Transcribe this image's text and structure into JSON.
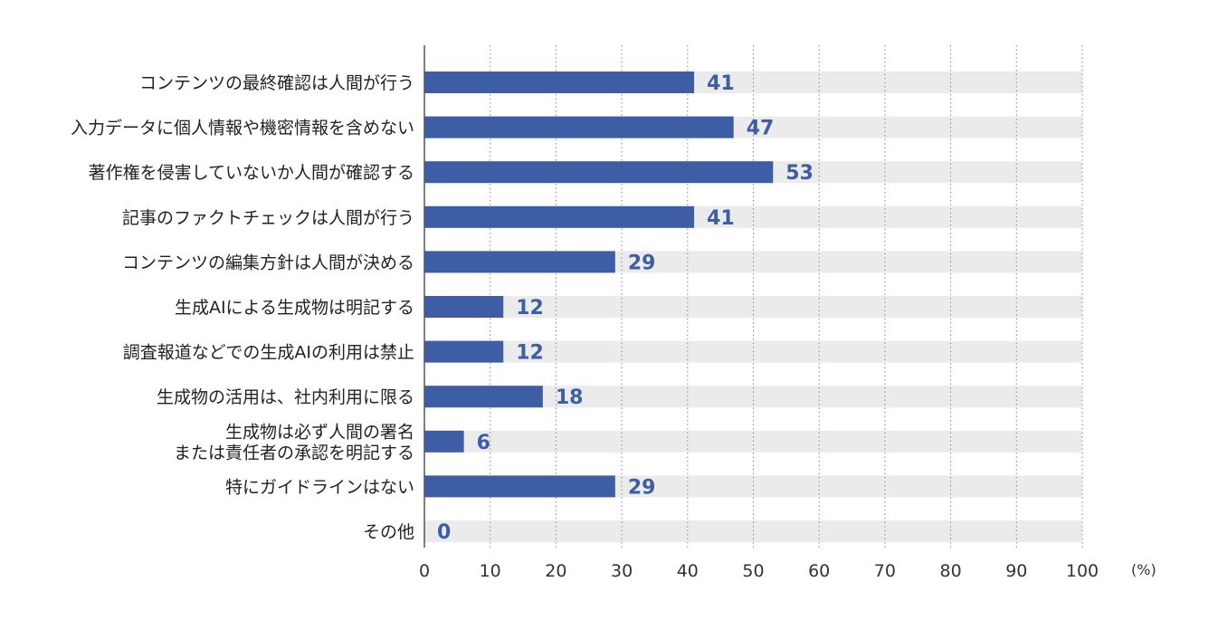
{
  "chart_data": {
    "type": "bar",
    "orientation": "horizontal",
    "categories": [
      [
        "コンテンツの最終確認は人間が行う"
      ],
      [
        "入力データに個人情報や機密情報を含めない"
      ],
      [
        "著作権を侵害していないか人間が確認する"
      ],
      [
        "記事のファクトチェックは人間が行う"
      ],
      [
        "コンテンツの編集方針は人間が決める"
      ],
      [
        "生成AIによる生成物は明記する"
      ],
      [
        "調査報道などでの生成AIの利用は禁止"
      ],
      [
        "生成物の活用は、社内利用に限る"
      ],
      [
        "生成物は必ず人間の署名",
        "または責任者の承認を明記する"
      ],
      [
        "特にガイドラインはない"
      ],
      [
        "その他"
      ]
    ],
    "values": [
      41,
      47,
      53,
      41,
      29,
      12,
      12,
      18,
      6,
      29,
      0
    ],
    "xlim": [
      0,
      100
    ],
    "x_ticks": [
      0,
      10,
      20,
      30,
      40,
      50,
      60,
      70,
      80,
      90,
      100
    ],
    "unit": "(%)",
    "grid": "vertical dotted",
    "colors": {
      "bar": "#3d5ea5",
      "track": "#ebebeb",
      "value_text": "#3d5ea5",
      "grid": "#888888",
      "axis": "#555555"
    }
  }
}
